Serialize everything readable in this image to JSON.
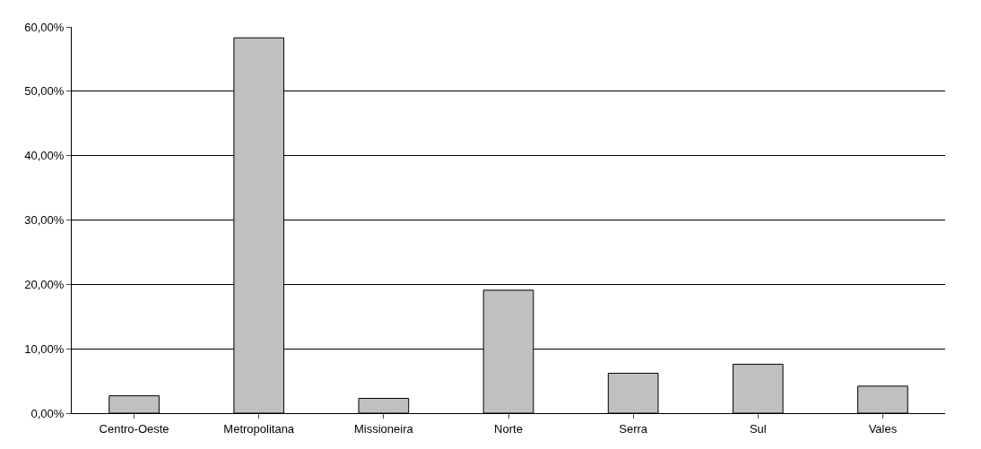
{
  "chart_data": {
    "type": "bar",
    "categories": [
      "Centro-Oeste",
      "Metropolitana",
      "Missioneira",
      "Norte",
      "Serra",
      "Sul",
      "Vales"
    ],
    "values": [
      2.7,
      58.3,
      2.3,
      19.1,
      6.2,
      7.6,
      4.2
    ],
    "color": "#c0c0c0",
    "ylim": [
      0,
      60
    ],
    "yticks": [
      {
        "value": 0,
        "label": "0,00%"
      },
      {
        "value": 10,
        "label": "10,00%"
      },
      {
        "value": 20,
        "label": "20,00%"
      },
      {
        "value": 30,
        "label": "30,00%"
      },
      {
        "value": 40,
        "label": "40,00%"
      },
      {
        "value": 50,
        "label": "50,00%"
      },
      {
        "value": 60,
        "label": "60,00%"
      }
    ],
    "grid": "y"
  }
}
